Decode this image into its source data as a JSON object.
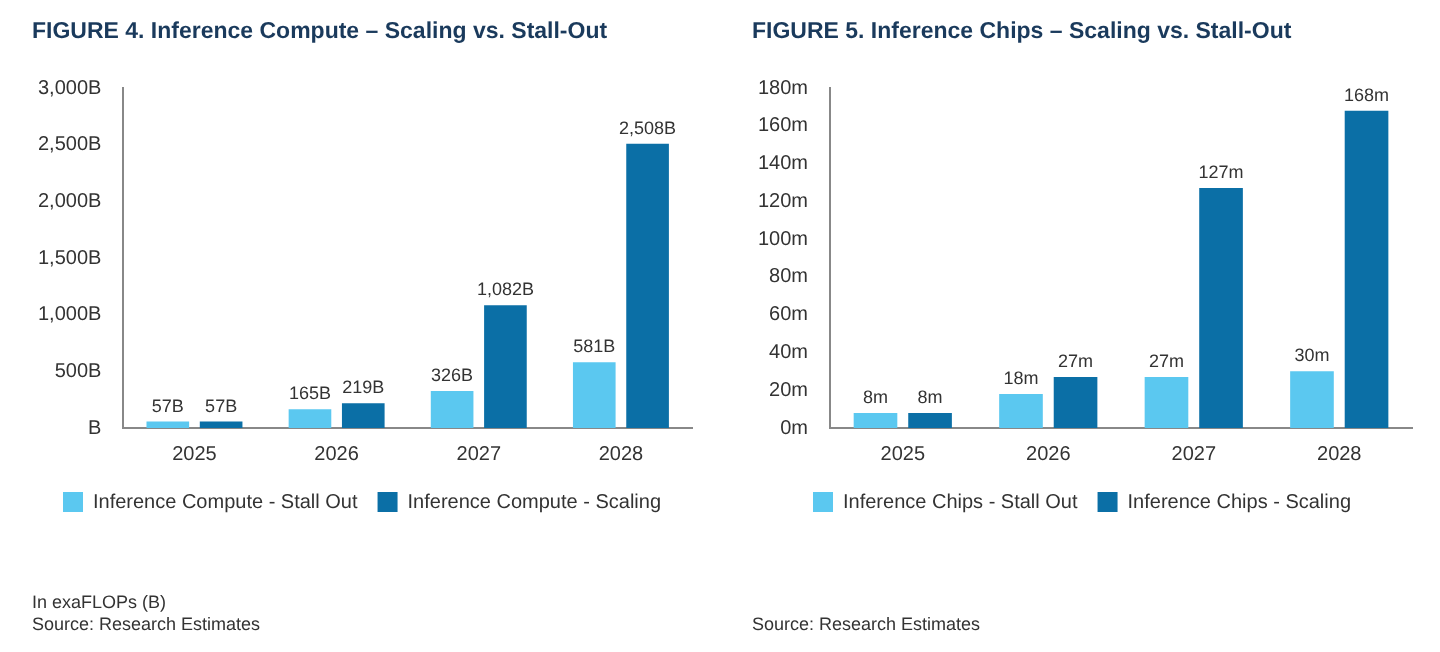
{
  "chart_data": [
    {
      "type": "bar",
      "title": "FIGURE 4. Inference Compute – Scaling vs. Stall-Out",
      "categories": [
        "2025",
        "2026",
        "2027",
        "2028"
      ],
      "series": [
        {
          "name": "Inference Compute - Stall Out",
          "color": "#5bc8f0",
          "values": [
            57,
            165,
            326,
            581
          ],
          "value_labels": [
            "57B",
            "165B",
            "326B",
            "581B"
          ]
        },
        {
          "name": "Inference Compute - Scaling",
          "color": "#0b6fa6",
          "values": [
            57,
            219,
            1082,
            2508
          ],
          "value_labels": [
            "57B",
            "219B",
            "1,082B",
            "2,508B"
          ]
        }
      ],
      "ylim": [
        0,
        3000
      ],
      "yticks": [
        {
          "value": 0,
          "label": "B"
        },
        {
          "value": 500,
          "label": "500B"
        },
        {
          "value": 1000,
          "label": "1,000B"
        },
        {
          "value": 1500,
          "label": "1,500B"
        },
        {
          "value": 2000,
          "label": "2,000B"
        },
        {
          "value": 2500,
          "label": "2,500B"
        },
        {
          "value": 3000,
          "label": "3,000B"
        }
      ],
      "legend": "bottom",
      "annotations": [
        "In exaFLOPs (B)",
        "Source: Research Estimates"
      ]
    },
    {
      "type": "bar",
      "title": "FIGURE 5. Inference Chips – Scaling vs. Stall-Out",
      "categories": [
        "2025",
        "2026",
        "2027",
        "2028"
      ],
      "series": [
        {
          "name": "Inference Chips - Stall Out",
          "color": "#5bc8f0",
          "values": [
            8,
            18,
            27,
            30
          ],
          "value_labels": [
            "8m",
            "18m",
            "27m",
            "30m"
          ]
        },
        {
          "name": "Inference Chips - Scaling",
          "color": "#0b6fa6",
          "values": [
            8,
            27,
            127,
            168
          ],
          "value_labels": [
            "8m",
            "27m",
            "127m",
            "168m"
          ]
        }
      ],
      "ylim": [
        0,
        180
      ],
      "yticks": [
        {
          "value": 0,
          "label": "0m"
        },
        {
          "value": 20,
          "label": "20m"
        },
        {
          "value": 40,
          "label": "40m"
        },
        {
          "value": 60,
          "label": "60m"
        },
        {
          "value": 80,
          "label": "80m"
        },
        {
          "value": 100,
          "label": "100m"
        },
        {
          "value": 120,
          "label": "120m"
        },
        {
          "value": 140,
          "label": "140m"
        },
        {
          "value": 160,
          "label": "160m"
        },
        {
          "value": 180,
          "label": "180m"
        }
      ],
      "legend": "bottom",
      "annotations": [
        "Source: Research Estimates"
      ]
    }
  ]
}
